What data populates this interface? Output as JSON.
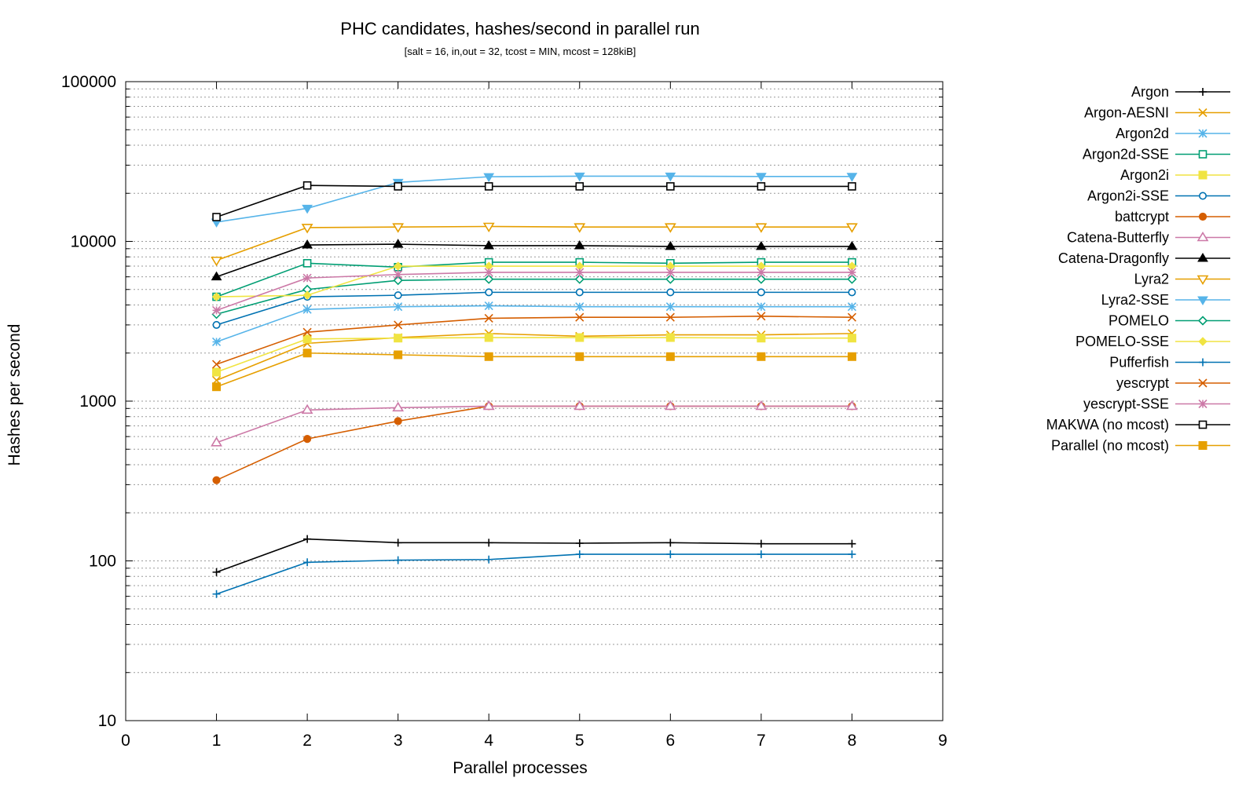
{
  "chart_data": {
    "type": "line",
    "title": "PHC candidates, hashes/second in parallel run",
    "subtitle": "[salt = 16, in,out = 32, tcost = MIN, mcost = 128kiB]",
    "xlabel": "Parallel processes",
    "ylabel": "Hashes per second",
    "xlim": [
      0,
      9
    ],
    "ylim": [
      10,
      100000
    ],
    "yscale": "log",
    "grid": "horizontal dotted (major and minor)",
    "legend_position": "right",
    "x_ticks": [
      "0",
      "1",
      "2",
      "3",
      "4",
      "5",
      "6",
      "7",
      "8",
      "9"
    ],
    "y_ticks": [
      "10",
      "100",
      "1000",
      "10000",
      "100000"
    ],
    "x": [
      1,
      2,
      3,
      4,
      5,
      6,
      7,
      8
    ],
    "series": [
      {
        "name": "Argon",
        "color": "#000000",
        "marker": "plus",
        "values": [
          85,
          137,
          130,
          130,
          129,
          130,
          128,
          128
        ]
      },
      {
        "name": "Argon-AESNI",
        "color": "#e69f00",
        "marker": "cross",
        "values": [
          1350,
          2300,
          2500,
          2650,
          2550,
          2600,
          2600,
          2650
        ]
      },
      {
        "name": "Argon2d",
        "color": "#56b4e9",
        "marker": "star",
        "values": [
          2350,
          3750,
          3900,
          3950,
          3900,
          3900,
          3900,
          3900
        ]
      },
      {
        "name": "Argon2d-SSE",
        "color": "#009e73",
        "marker": "square-open",
        "values": [
          4500,
          7300,
          6900,
          7400,
          7400,
          7300,
          7400,
          7400
        ]
      },
      {
        "name": "Argon2i",
        "color": "#f0e442",
        "marker": "square-filled",
        "values": [
          1520,
          2450,
          2480,
          2500,
          2500,
          2500,
          2480,
          2480
        ]
      },
      {
        "name": "Argon2i-SSE",
        "color": "#0072b2",
        "marker": "circle-open",
        "values": [
          3000,
          4500,
          4600,
          4800,
          4800,
          4800,
          4800,
          4800
        ]
      },
      {
        "name": "battcrypt",
        "color": "#d55e00",
        "marker": "circle-filled",
        "values": [
          320,
          580,
          750,
          930,
          930,
          930,
          930,
          930
        ]
      },
      {
        "name": "Catena-Butterfly",
        "color": "#cc79a7",
        "marker": "triangle-open",
        "values": [
          550,
          880,
          910,
          930,
          930,
          930,
          930,
          930
        ]
      },
      {
        "name": "Catena-Dragonfly",
        "color": "#000000",
        "marker": "triangle-filled",
        "values": [
          6000,
          9500,
          9600,
          9400,
          9400,
          9300,
          9300,
          9300
        ]
      },
      {
        "name": "Lyra2",
        "color": "#e69f00",
        "marker": "triangle-down-open",
        "values": [
          7600,
          12200,
          12300,
          12400,
          12300,
          12300,
          12300,
          12300
        ]
      },
      {
        "name": "Lyra2-SSE",
        "color": "#56b4e9",
        "marker": "triangle-down-filled",
        "values": [
          13200,
          16100,
          23400,
          25400,
          25600,
          25600,
          25500,
          25500
        ]
      },
      {
        "name": "POMELO",
        "color": "#009e73",
        "marker": "diamond-open",
        "values": [
          3500,
          5000,
          5700,
          5800,
          5800,
          5800,
          5800,
          5800
        ]
      },
      {
        "name": "POMELO-SSE",
        "color": "#f0e442",
        "marker": "diamond-filled",
        "values": [
          4500,
          4600,
          7000,
          7000,
          7000,
          7000,
          7000,
          7000
        ]
      },
      {
        "name": "Pufferfish",
        "color": "#0072b2",
        "marker": "plus",
        "values": [
          62,
          98,
          101,
          102,
          110,
          110,
          110,
          110
        ]
      },
      {
        "name": "yescrypt",
        "color": "#d55e00",
        "marker": "cross",
        "values": [
          1700,
          2700,
          3000,
          3300,
          3350,
          3350,
          3400,
          3350
        ]
      },
      {
        "name": "yescrypt-SSE",
        "color": "#cc79a7",
        "marker": "star",
        "values": [
          3700,
          5900,
          6200,
          6400,
          6400,
          6400,
          6400,
          6400
        ]
      },
      {
        "name": "MAKWA (no mcost)",
        "color": "#000000",
        "marker": "square-open",
        "values": [
          14200,
          22400,
          22100,
          22100,
          22100,
          22100,
          22100,
          22100
        ]
      },
      {
        "name": "Parallel (no mcost)",
        "color": "#e69f00",
        "marker": "square-filled",
        "values": [
          1230,
          2000,
          1950,
          1900,
          1900,
          1900,
          1900,
          1900
        ]
      }
    ]
  }
}
